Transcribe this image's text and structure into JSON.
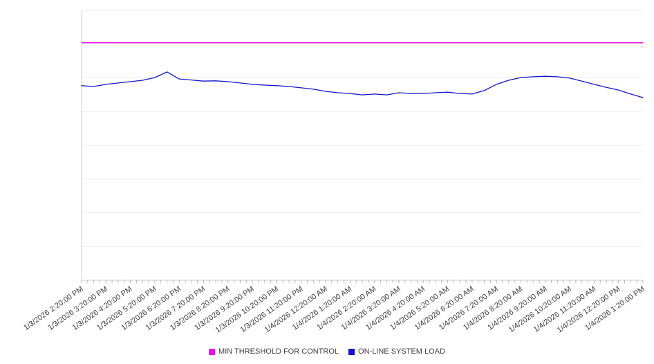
{
  "chart_data": {
    "type": "line",
    "title": "",
    "xlabel": "",
    "ylabel": "",
    "grid": true,
    "legend_position": "bottom",
    "ylim": [
      0,
      100
    ],
    "y_gridline_count": 9,
    "y_tick_labels_visible": false,
    "x_labels": [
      "1/3/2026 2:20:00 PM",
      "1/3/2026 3:20:00 PM",
      "1/3/2026 4:20:00 PM",
      "1/3/2026 5:20:00 PM",
      "1/3/2026 6:20:00 PM",
      "1/3/2026 7:20:00 PM",
      "1/3/2026 8:20:00 PM",
      "1/3/2026 9:20:00 PM",
      "1/3/2026 10:20:00 PM",
      "1/3/2026 11:20:00 PM",
      "1/4/2026 12:20:00 AM",
      "1/4/2026 1:20:00 AM",
      "1/4/2026 2:20:00 AM",
      "1/4/2026 3:20:00 AM",
      "1/4/2026 4:20:00 AM",
      "1/4/2026 5:20:00 AM",
      "1/4/2026 6:20:00 AM",
      "1/4/2026 7:20:00 AM",
      "1/4/2026 8:20:00 AM",
      "1/4/2026 9:20:00 AM",
      "1/4/2026 10:20:00 AM",
      "1/4/2026 11:20:00 AM",
      "1/4/2026 12:20:00 PM",
      "1/4/2026 1:20:00 PM"
    ],
    "series": [
      {
        "name": "MIN THRESHOLD FOR CONTROL",
        "type": "constant-line",
        "color": "#e614e6",
        "value": 88
      },
      {
        "name": "ON-LINE SYSTEM LOAD",
        "type": "line",
        "color": "#1414cc",
        "points_per_label_interval": 2,
        "values": [
          72.1,
          71.8,
          72.6,
          73.1,
          73.6,
          74.1,
          75.1,
          77.2,
          74.6,
          74.2,
          73.8,
          73.9,
          73.6,
          73.1,
          72.6,
          72.3,
          72.1,
          71.8,
          71.3,
          70.8,
          70.0,
          69.5,
          69.2,
          68.7,
          69.0,
          68.7,
          69.5,
          69.2,
          69.2,
          69.5,
          69.7,
          69.2,
          69.0,
          70.3,
          72.6,
          74.1,
          75.1,
          75.4,
          75.6,
          75.4,
          74.9,
          73.8,
          72.6,
          71.5,
          70.5,
          69.0,
          67.7
        ]
      }
    ]
  },
  "legend": {
    "items": [
      {
        "label": "MIN THRESHOLD FOR CONTROL",
        "color": "#e614e6"
      },
      {
        "label": "ON-LINE SYSTEM LOAD",
        "color": "#1414cc"
      }
    ]
  },
  "style": {
    "gridline_color": "#ededed",
    "axis_color": "#cccccc",
    "tick_color": "#b5b5b5",
    "label_color": "#3d3d3d"
  }
}
